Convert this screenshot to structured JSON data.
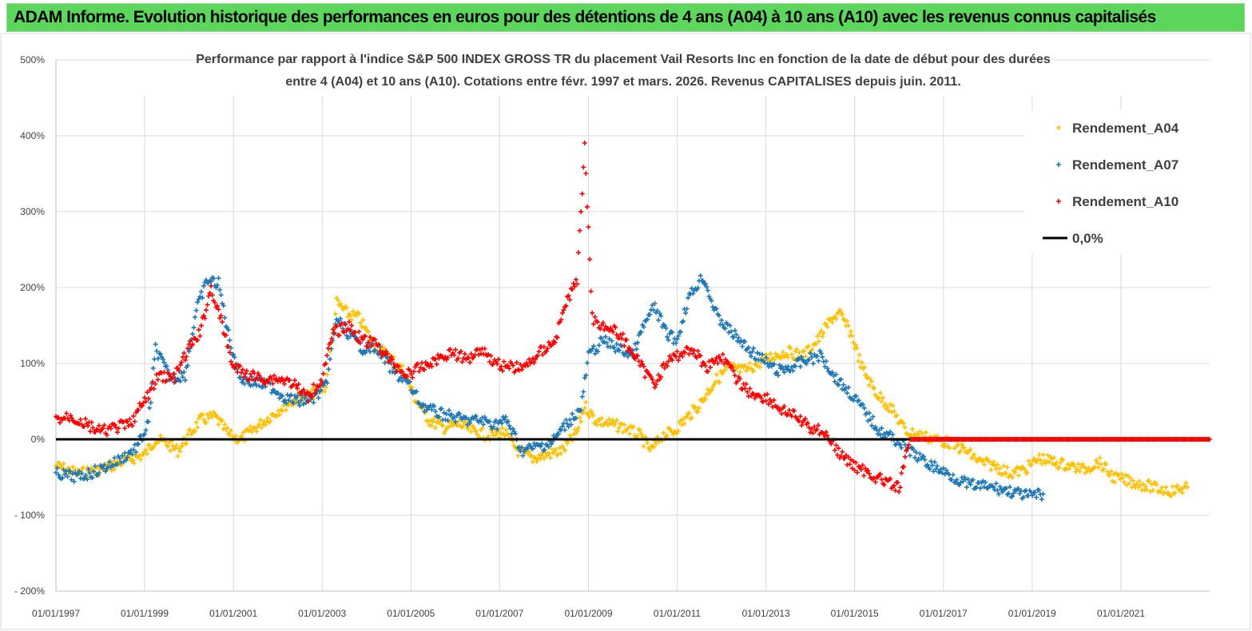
{
  "banner": {
    "title": "ADAM Informe. Evolution historique des performances en euros pour des détentions de 4 ans (A04) à 10 ans (A10) avec les revenus connus capitalisés"
  },
  "colors": {
    "banner": "#5cd65c",
    "A04": "#ffc000",
    "A07": "#1f77b4",
    "A10": "#ff0000",
    "zero": "#000000",
    "grid": "#d9d9d9"
  },
  "chart_data": {
    "type": "scatter",
    "title_lines": [
      "Performance par rapport à l'indice S&P 500 INDEX GROSS TR  du placement Vail Resorts Inc en fonction de la date de début pour des durées",
      "entre 4 (A04) et 10 ans (A10). Cotations entre févr. 1997 et mars. 2026. Revenus CAPITALISES depuis juin. 2011."
    ],
    "xlabel": "",
    "ylabel": "",
    "x_range": [
      "1997-01-01",
      "2023-01-01"
    ],
    "x_tick_labels": [
      "01/01/1997",
      "01/01/1999",
      "01/01/2001",
      "01/01/2003",
      "01/01/2005",
      "01/01/2007",
      "01/01/2009",
      "01/01/2011",
      "01/01/2013",
      "01/01/2015",
      "01/01/2017",
      "01/01/2019",
      "01/01/2021"
    ],
    "y_ticks": [
      -200,
      -100,
      0,
      100,
      200,
      300,
      400,
      500
    ],
    "y_tick_labels": [
      "- 200%",
      "- 100%",
      "0%",
      "100%",
      "200%",
      "300%",
      "400%",
      "500%"
    ],
    "ylim": [
      -200,
      500
    ],
    "grid": true,
    "legend_position": "top-right",
    "series": [
      {
        "name": "Rendement_A04",
        "color": "#ffc000",
        "points": [
          [
            "1997-01-01",
            -35
          ],
          [
            "1997-07-01",
            -45
          ],
          [
            "1998-01-01",
            -40
          ],
          [
            "1998-07-01",
            -30
          ],
          [
            "1999-01-01",
            -20
          ],
          [
            "1999-04-01",
            0
          ],
          [
            "1999-07-01",
            -5
          ],
          [
            "1999-10-01",
            -15
          ],
          [
            "2000-01-01",
            5
          ],
          [
            "2000-04-01",
            25
          ],
          [
            "2000-08-01",
            30
          ],
          [
            "2000-12-01",
            5
          ],
          [
            "2001-03-01",
            0
          ],
          [
            "2001-07-01",
            15
          ],
          [
            "2001-11-01",
            30
          ],
          [
            "2002-03-01",
            45
          ],
          [
            "2002-07-01",
            55
          ],
          [
            "2002-11-01",
            60
          ],
          [
            "2003-02-01",
            70
          ],
          [
            "2003-05-01",
            180
          ],
          [
            "2003-08-01",
            165
          ],
          [
            "2003-11-01",
            160
          ],
          [
            "2004-03-01",
            125
          ],
          [
            "2004-07-01",
            110
          ],
          [
            "2004-11-01",
            90
          ],
          [
            "2005-02-01",
            55
          ],
          [
            "2005-06-01",
            25
          ],
          [
            "2005-10-01",
            15
          ],
          [
            "2006-02-01",
            20
          ],
          [
            "2006-06-01",
            10
          ],
          [
            "2006-10-01",
            5
          ],
          [
            "2007-02-01",
            10
          ],
          [
            "2007-06-01",
            -15
          ],
          [
            "2007-10-01",
            -25
          ],
          [
            "2008-02-01",
            -20
          ],
          [
            "2008-06-01",
            -15
          ],
          [
            "2008-10-01",
            10
          ],
          [
            "2008-12-01",
            45
          ],
          [
            "2009-03-01",
            25
          ],
          [
            "2009-07-01",
            20
          ],
          [
            "2009-11-01",
            15
          ],
          [
            "2010-03-01",
            5
          ],
          [
            "2010-06-01",
            -15
          ],
          [
            "2010-09-01",
            5
          ],
          [
            "2010-12-01",
            10
          ],
          [
            "2011-03-01",
            25
          ],
          [
            "2011-07-01",
            45
          ],
          [
            "2011-11-01",
            75
          ],
          [
            "2012-03-01",
            95
          ],
          [
            "2012-07-01",
            90
          ],
          [
            "2012-11-01",
            100
          ],
          [
            "2013-03-01",
            110
          ],
          [
            "2013-07-01",
            115
          ],
          [
            "2013-11-01",
            110
          ],
          [
            "2014-03-01",
            130
          ],
          [
            "2014-07-01",
            160
          ],
          [
            "2014-09-01",
            165
          ],
          [
            "2014-12-01",
            140
          ],
          [
            "2015-03-01",
            95
          ],
          [
            "2015-07-01",
            60
          ],
          [
            "2015-11-01",
            40
          ],
          [
            "2016-03-01",
            10
          ],
          [
            "2016-07-01",
            5
          ],
          [
            "2016-11-01",
            0
          ],
          [
            "2017-03-01",
            -5
          ],
          [
            "2017-07-01",
            -15
          ],
          [
            "2017-11-01",
            -30
          ],
          [
            "2018-03-01",
            -35
          ],
          [
            "2018-07-01",
            -45
          ],
          [
            "2018-11-01",
            -40
          ],
          [
            "2019-03-01",
            -25
          ],
          [
            "2019-07-01",
            -30
          ],
          [
            "2019-11-01",
            -35
          ],
          [
            "2020-03-01",
            -40
          ],
          [
            "2020-07-01",
            -30
          ],
          [
            "2020-11-01",
            -50
          ],
          [
            "2021-03-01",
            -55
          ],
          [
            "2021-07-01",
            -60
          ],
          [
            "2021-11-01",
            -65
          ],
          [
            "2022-03-01",
            -68
          ],
          [
            "2022-07-01",
            -63
          ]
        ]
      },
      {
        "name": "Rendement_A07",
        "color": "#1f77b4",
        "points": [
          [
            "1997-01-01",
            -45
          ],
          [
            "1997-07-01",
            -50
          ],
          [
            "1998-01-01",
            -40
          ],
          [
            "1998-07-01",
            -25
          ],
          [
            "1998-11-01",
            -10
          ],
          [
            "1999-02-01",
            20
          ],
          [
            "1999-04-01",
            120
          ],
          [
            "1999-08-01",
            80
          ],
          [
            "1999-12-01",
            85
          ],
          [
            "2000-03-01",
            170
          ],
          [
            "2000-06-01",
            210
          ],
          [
            "2000-09-01",
            205
          ],
          [
            "2000-12-01",
            130
          ],
          [
            "2001-03-01",
            80
          ],
          [
            "2001-07-01",
            75
          ],
          [
            "2001-11-01",
            70
          ],
          [
            "2002-03-01",
            55
          ],
          [
            "2002-07-01",
            50
          ],
          [
            "2002-11-01",
            55
          ],
          [
            "2003-02-01",
            70
          ],
          [
            "2003-05-01",
            160
          ],
          [
            "2003-08-01",
            140
          ],
          [
            "2003-12-01",
            120
          ],
          [
            "2004-04-01",
            120
          ],
          [
            "2004-08-01",
            90
          ],
          [
            "2004-12-01",
            75
          ],
          [
            "2005-04-01",
            45
          ],
          [
            "2005-08-01",
            35
          ],
          [
            "2005-12-01",
            30
          ],
          [
            "2006-04-01",
            25
          ],
          [
            "2006-08-01",
            25
          ],
          [
            "2006-12-01",
            20
          ],
          [
            "2007-03-01",
            25
          ],
          [
            "2007-07-01",
            -15
          ],
          [
            "2007-11-01",
            -10
          ],
          [
            "2008-03-01",
            -5
          ],
          [
            "2008-07-01",
            20
          ],
          [
            "2008-11-01",
            40
          ],
          [
            "2009-01-01",
            110
          ],
          [
            "2009-05-01",
            130
          ],
          [
            "2009-09-01",
            120
          ],
          [
            "2010-01-01",
            110
          ],
          [
            "2010-04-01",
            150
          ],
          [
            "2010-07-01",
            175
          ],
          [
            "2010-10-01",
            140
          ],
          [
            "2011-01-01",
            130
          ],
          [
            "2011-04-01",
            185
          ],
          [
            "2011-08-01",
            215
          ],
          [
            "2011-12-01",
            160
          ],
          [
            "2012-04-01",
            140
          ],
          [
            "2012-08-01",
            120
          ],
          [
            "2012-12-01",
            105
          ],
          [
            "2013-04-01",
            90
          ],
          [
            "2013-08-01",
            95
          ],
          [
            "2013-12-01",
            105
          ],
          [
            "2014-04-01",
            110
          ],
          [
            "2014-08-01",
            80
          ],
          [
            "2014-12-01",
            60
          ],
          [
            "2015-04-01",
            35
          ],
          [
            "2015-08-01",
            10
          ],
          [
            "2015-12-01",
            0
          ],
          [
            "2016-04-01",
            -15
          ],
          [
            "2016-08-01",
            -30
          ],
          [
            "2016-12-01",
            -40
          ],
          [
            "2017-04-01",
            -50
          ],
          [
            "2017-08-01",
            -60
          ],
          [
            "2017-12-01",
            -62
          ],
          [
            "2018-04-01",
            -65
          ],
          [
            "2018-08-01",
            -70
          ],
          [
            "2018-12-01",
            -75
          ],
          [
            "2019-04-01",
            -72
          ]
        ]
      },
      {
        "name": "Rendement_A10",
        "color": "#ff0000",
        "points": [
          [
            "1997-01-01",
            25
          ],
          [
            "1997-05-01",
            30
          ],
          [
            "1997-09-01",
            20
          ],
          [
            "1998-01-01",
            10
          ],
          [
            "1998-05-01",
            15
          ],
          [
            "1998-09-01",
            20
          ],
          [
            "1999-01-01",
            50
          ],
          [
            "1999-05-01",
            85
          ],
          [
            "1999-09-01",
            80
          ],
          [
            "2000-01-01",
            120
          ],
          [
            "2000-04-01",
            140
          ],
          [
            "2000-07-01",
            200
          ],
          [
            "2000-10-01",
            150
          ],
          [
            "2001-01-01",
            95
          ],
          [
            "2001-05-01",
            85
          ],
          [
            "2001-09-01",
            80
          ],
          [
            "2002-01-01",
            80
          ],
          [
            "2002-05-01",
            75
          ],
          [
            "2002-09-01",
            55
          ],
          [
            "2003-01-01",
            80
          ],
          [
            "2003-04-01",
            140
          ],
          [
            "2003-08-01",
            150
          ],
          [
            "2003-12-01",
            130
          ],
          [
            "2004-04-01",
            125
          ],
          [
            "2004-08-01",
            100
          ],
          [
            "2004-12-01",
            85
          ],
          [
            "2005-04-01",
            95
          ],
          [
            "2005-08-01",
            105
          ],
          [
            "2005-12-01",
            115
          ],
          [
            "2006-04-01",
            105
          ],
          [
            "2006-08-01",
            120
          ],
          [
            "2006-12-01",
            100
          ],
          [
            "2007-04-01",
            95
          ],
          [
            "2007-08-01",
            95
          ],
          [
            "2007-12-01",
            115
          ],
          [
            "2008-04-01",
            130
          ],
          [
            "2008-07-01",
            180
          ],
          [
            "2008-10-01",
            210
          ],
          [
            "2008-12-01",
            390
          ],
          [
            "2009-02-01",
            160
          ],
          [
            "2009-05-01",
            150
          ],
          [
            "2009-09-01",
            140
          ],
          [
            "2010-01-01",
            115
          ],
          [
            "2010-04-01",
            90
          ],
          [
            "2010-07-01",
            75
          ],
          [
            "2010-10-01",
            100
          ],
          [
            "2011-01-01",
            110
          ],
          [
            "2011-05-01",
            120
          ],
          [
            "2011-09-01",
            95
          ],
          [
            "2012-01-01",
            110
          ],
          [
            "2012-05-01",
            80
          ],
          [
            "2012-09-01",
            60
          ],
          [
            "2013-01-01",
            55
          ],
          [
            "2013-05-01",
            40
          ],
          [
            "2013-09-01",
            30
          ],
          [
            "2014-01-01",
            15
          ],
          [
            "2014-05-01",
            10
          ],
          [
            "2014-09-01",
            -20
          ],
          [
            "2015-01-01",
            -35
          ],
          [
            "2015-05-01",
            -45
          ],
          [
            "2015-09-01",
            -55
          ],
          [
            "2016-01-01",
            -65
          ],
          [
            "2016-04-01",
            0
          ],
          [
            "2017-01-01",
            0
          ],
          [
            "2018-01-01",
            0
          ],
          [
            "2019-01-01",
            0
          ],
          [
            "2020-01-01",
            0
          ],
          [
            "2021-01-01",
            0
          ],
          [
            "2022-01-01",
            0
          ],
          [
            "2023-01-01",
            0
          ]
        ]
      },
      {
        "name": "0,0%",
        "color": "#000000",
        "points": [
          [
            "1997-01-01",
            0
          ],
          [
            "2016-04-01",
            0
          ]
        ]
      }
    ]
  }
}
